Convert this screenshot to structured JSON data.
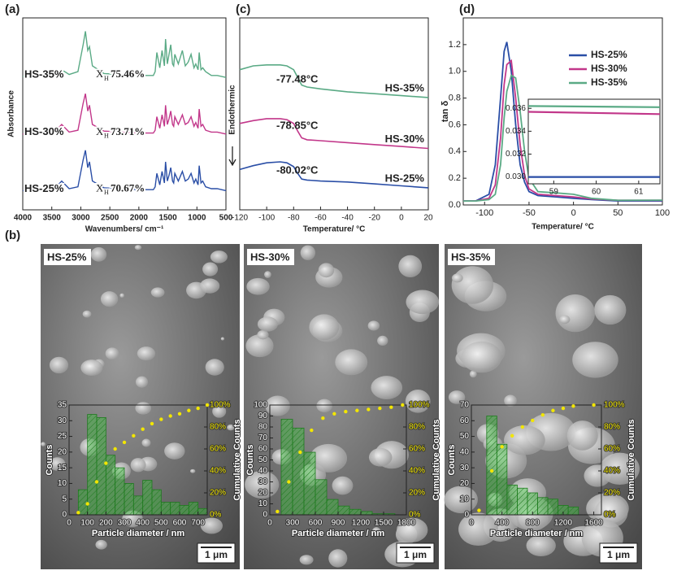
{
  "panel_labels": {
    "a": "(a)",
    "b": "(b)",
    "c": "(c)",
    "d": "(d)"
  },
  "chart_data": [
    {
      "type": "line",
      "xlabel": "Wavenumbers/ cm⁻¹",
      "ylabel": "Absorbance",
      "x": [
        4000,
        3700,
        3450,
        3330,
        3200,
        3050,
        2960,
        2920,
        2880,
        2850,
        2800,
        2600,
        2000,
        1750,
        1720,
        1690,
        1640,
        1600,
        1560,
        1540,
        1510,
        1480,
        1450,
        1420,
        1400,
        1380,
        1320,
        1250,
        1200,
        1150,
        1100,
        1050,
        1020,
        980,
        960,
        930,
        900,
        850,
        750,
        650,
        500
      ],
      "xlim": [
        4000,
        500
      ],
      "xticks": [
        4000,
        3500,
        3000,
        2500,
        2000,
        1500,
        1000,
        500
      ],
      "ylim": [
        0,
        10
      ],
      "series": [
        {
          "name": "HS-35%",
          "color": "#5aaa85",
          "values": [
            6.95,
            6.95,
            7.05,
            7.3,
            7.05,
            7.2,
            8.6,
            9.3,
            8.3,
            8.5,
            7.5,
            7.1,
            7.0,
            7.0,
            7.2,
            8.2,
            7.4,
            8.3,
            7.5,
            8.9,
            7.6,
            8.1,
            8.6,
            7.6,
            7.5,
            8.1,
            7.6,
            8.3,
            7.5,
            7.7,
            8.1,
            7.4,
            7.6,
            7.3,
            8.2,
            7.3,
            7.4,
            7.2,
            7.0,
            7.0,
            6.9
          ]
        },
        {
          "name": "HS-30%",
          "color": "#c2378a",
          "values": [
            3.95,
            3.95,
            4.05,
            4.45,
            4.05,
            4.15,
            5.55,
            6.05,
            5.15,
            5.45,
            4.45,
            4.1,
            4.0,
            4.0,
            4.15,
            4.85,
            4.25,
            4.95,
            4.35,
            5.45,
            4.45,
            4.75,
            5.15,
            4.45,
            4.35,
            4.85,
            4.45,
            4.95,
            4.45,
            4.55,
            4.85,
            4.35,
            4.55,
            4.25,
            5.25,
            4.35,
            4.45,
            4.15,
            4.05,
            4.05,
            3.95
          ]
        },
        {
          "name": "HS-25%",
          "color": "#2a4ea6",
          "values": [
            1.0,
            1.0,
            1.1,
            1.5,
            1.1,
            1.2,
            2.6,
            3.1,
            2.2,
            2.5,
            1.5,
            1.15,
            1.05,
            1.05,
            1.2,
            1.9,
            1.3,
            2.0,
            1.4,
            2.5,
            1.5,
            1.8,
            2.2,
            1.5,
            1.4,
            1.9,
            1.5,
            2.0,
            1.5,
            1.6,
            1.9,
            1.4,
            1.6,
            1.3,
            2.3,
            1.4,
            1.5,
            1.2,
            1.1,
            1.1,
            1.0
          ]
        }
      ],
      "annotations": [
        {
          "text": "X",
          "sub": "H",
          "value": "75.46%"
        },
        {
          "text": "X",
          "sub": "H",
          "value": "73.71%"
        },
        {
          "text": "X",
          "sub": "H",
          "value": "70.67%"
        }
      ]
    },
    {
      "type": "line",
      "xlabel": "Temperature/ °C",
      "ylabel": "Endothermic",
      "x": [
        -120,
        -110,
        -100,
        -90,
        -85,
        -80,
        -77,
        -74,
        -70,
        -60,
        -40,
        -20,
        0,
        20
      ],
      "xlim": [
        -120,
        20
      ],
      "xticks": [
        -120,
        -100,
        -80,
        -60,
        -40,
        -20,
        0,
        20
      ],
      "ylim": [
        0,
        10
      ],
      "series": [
        {
          "name": "HS-35%",
          "color": "#5aaa85",
          "values": [
            7.3,
            7.5,
            7.55,
            7.55,
            7.5,
            7.3,
            6.9,
            6.5,
            6.4,
            6.3,
            6.15,
            6.05,
            5.95,
            5.85
          ]
        },
        {
          "name": "HS-30%",
          "color": "#c2378a",
          "values": [
            4.5,
            4.65,
            4.75,
            4.75,
            4.7,
            4.5,
            4.1,
            3.75,
            3.65,
            3.6,
            3.5,
            3.4,
            3.3,
            3.2
          ]
        },
        {
          "name": "HS-25%",
          "color": "#2a4ea6",
          "values": [
            2.1,
            2.3,
            2.45,
            2.5,
            2.45,
            2.25,
            1.9,
            1.6,
            1.55,
            1.5,
            1.45,
            1.35,
            1.25,
            1.15
          ]
        }
      ],
      "annotations": [
        "-77.48°C",
        "-78.85°C",
        "-80.02°C"
      ]
    },
    {
      "type": "line",
      "xlabel": "Temperature/ °C",
      "ylabel": "tan δ",
      "x": [
        -124,
        -110,
        -95,
        -88,
        -82,
        -78,
        -75,
        -70,
        -65,
        -60,
        -55,
        -50,
        -40,
        -20,
        0,
        20,
        50,
        100
      ],
      "xlim": [
        -124,
        100
      ],
      "xticks": [
        -100,
        -50,
        0,
        50,
        100
      ],
      "ylim": [
        0,
        1.4
      ],
      "yticks": [
        {
          "value": 0,
          "label": "0.0"
        },
        0.2,
        0.4,
        0.6,
        0.8,
        {
          "value": 1,
          "label": "1.0"
        },
        1.2
      ],
      "legend": "upper right",
      "series": [
        {
          "name": "HS-25%",
          "color": "#2a4ea6",
          "values": [
            0.03,
            0.03,
            0.08,
            0.3,
            0.8,
            1.15,
            1.22,
            1.0,
            0.6,
            0.3,
            0.17,
            0.1,
            0.07,
            0.06,
            0.05,
            0.04,
            0.03,
            0.03
          ]
        },
        {
          "name": "HS-30%",
          "color": "#c2378a",
          "values": [
            0.03,
            0.03,
            0.05,
            0.15,
            0.5,
            0.9,
            1.05,
            1.08,
            0.8,
            0.45,
            0.22,
            0.12,
            0.08,
            0.07,
            0.06,
            0.045,
            0.035,
            0.035
          ]
        },
        {
          "name": "HS-35%",
          "color": "#5aaa85",
          "values": [
            0.03,
            0.03,
            0.04,
            0.08,
            0.3,
            0.65,
            0.85,
            0.97,
            0.95,
            0.7,
            0.4,
            0.2,
            0.1,
            0.09,
            0.08,
            0.05,
            0.035,
            0.036
          ]
        }
      ],
      "inset": {
        "x": [
          58.4,
          61.5
        ],
        "xlim": [
          58.4,
          61.5
        ],
        "xticks": [
          59,
          60,
          61
        ],
        "ylim": [
          0.0294,
          0.0368
        ],
        "yticks": [
          {
            "value": 0.03,
            "label": "0.030"
          },
          0.032,
          0.034,
          0.036
        ],
        "series": [
          {
            "name": "HS-25%",
            "color": "#2a4ea6",
            "values": [
              0.03,
              0.03
            ]
          },
          {
            "name": "HS-30%",
            "color": "#c2378a",
            "values": [
              0.0357,
              0.0355
            ]
          },
          {
            "name": "HS-35%",
            "color": "#5aaa85",
            "values": [
              0.0362,
              0.0361
            ]
          }
        ]
      }
    },
    {
      "type": "histogram",
      "label": "HS-25%",
      "scale_bar": "1 μm",
      "xlabel": "Particle diameter / nm",
      "ylabel": "Counts",
      "y2label": "Cumulative Counts",
      "bins": [
        50,
        100,
        150,
        200,
        250,
        300,
        350,
        400,
        450,
        500,
        550,
        600,
        650,
        700,
        750
      ],
      "values": [
        8,
        32,
        31,
        19,
        15,
        10,
        6,
        11,
        8,
        4,
        4,
        3,
        4,
        2
      ],
      "color": "#3cb043",
      "xlim": [
        0,
        750
      ],
      "xticks": [
        0,
        100,
        200,
        300,
        400,
        500,
        600,
        700
      ],
      "ylim": [
        0,
        35
      ],
      "yticks": [
        0,
        5,
        10,
        15,
        20,
        25,
        30,
        35
      ],
      "y2lim": [
        0,
        100
      ],
      "y2ticks": [
        {
          "value": 0,
          "label": "0%"
        },
        {
          "value": 20,
          "label": "20%"
        },
        {
          "value": 40,
          "label": "40%"
        },
        {
          "value": 60,
          "label": "60%"
        },
        {
          "value": 80,
          "label": "80%"
        },
        {
          "value": 100,
          "label": "100%"
        }
      ],
      "cumulative": {
        "axis": "y2",
        "color": "#f2e600",
        "x": [
          50,
          100,
          150,
          200,
          250,
          300,
          350,
          400,
          450,
          500,
          550,
          600,
          650,
          700,
          750
        ],
        "values": [
          2,
          10,
          30,
          47,
          60,
          66,
          72,
          78,
          83,
          87,
          90,
          92,
          95,
          97,
          100
        ]
      }
    },
    {
      "type": "histogram",
      "label": "HS-30%",
      "scale_bar": "1 μm",
      "xlabel": "Particle diameter / nm",
      "ylabel": "Counts",
      "y2label": "Cumulative Counts",
      "bins": [
        150,
        300,
        450,
        600,
        750,
        900,
        1050,
        1200,
        1350,
        1500,
        1650
      ],
      "values": [
        87,
        79,
        57,
        32,
        14,
        8,
        5,
        3,
        1,
        1
      ],
      "color": "#3cb043",
      "xlim": [
        0,
        1800
      ],
      "xticks": [
        0,
        300,
        600,
        900,
        1200,
        1500,
        1800
      ],
      "ylim": [
        0,
        100
      ],
      "yticks": [
        0,
        10,
        20,
        30,
        40,
        50,
        60,
        70,
        80,
        90,
        100
      ],
      "y2lim": [
        0,
        100
      ],
      "y2ticks": [
        {
          "value": 0,
          "label": "0%"
        },
        {
          "value": 20,
          "label": "20%"
        },
        {
          "value": 40,
          "label": "40%"
        },
        {
          "value": 60,
          "label": "60%"
        },
        {
          "value": 80,
          "label": "80%"
        },
        {
          "value": 100,
          "label": "100%"
        }
      ],
      "cumulative": {
        "axis": "y2",
        "color": "#f2e600",
        "x": [
          100,
          250,
          400,
          550,
          700,
          850,
          1000,
          1150,
          1300,
          1450,
          1600,
          1750
        ],
        "values": [
          3,
          30,
          57,
          77,
          88,
          92,
          94,
          95,
          96,
          97,
          98,
          100
        ]
      }
    },
    {
      "type": "histogram",
      "label": "HS-35%",
      "scale_bar": "1 μm",
      "xlabel": "Particle diameter / nm",
      "ylabel": "Counts",
      "y2label": "Cumulative Counts",
      "bins": [
        200,
        333,
        466,
        600,
        733,
        866,
        1000,
        1133,
        1266,
        1400
      ],
      "values": [
        63,
        45,
        19,
        17,
        14,
        11,
        10,
        6,
        5
      ],
      "color": "#3cb043",
      "xlim": [
        0,
        1700
      ],
      "xticks": [
        0,
        400,
        800,
        1200,
        1600
      ],
      "ylim": [
        0,
        70
      ],
      "yticks": [
        0,
        10,
        20,
        30,
        40,
        50,
        60,
        70
      ],
      "y2lim": [
        0,
        100
      ],
      "y2ticks": [
        {
          "value": 0,
          "label": "0%"
        },
        {
          "value": 20,
          "label": "20%"
        },
        {
          "value": 40,
          "label": "40%"
        },
        {
          "value": 60,
          "label": "60%"
        },
        {
          "value": 80,
          "label": "80%"
        },
        {
          "value": 100,
          "label": "100%"
        }
      ],
      "cumulative": {
        "axis": "y2",
        "color": "#f2e600",
        "x": [
          100,
          267,
          400,
          533,
          667,
          800,
          933,
          1067,
          1200,
          1333,
          1600
        ],
        "values": [
          4,
          40,
          62,
          72,
          80,
          86,
          91,
          95,
          97,
          99,
          100
        ]
      }
    }
  ]
}
